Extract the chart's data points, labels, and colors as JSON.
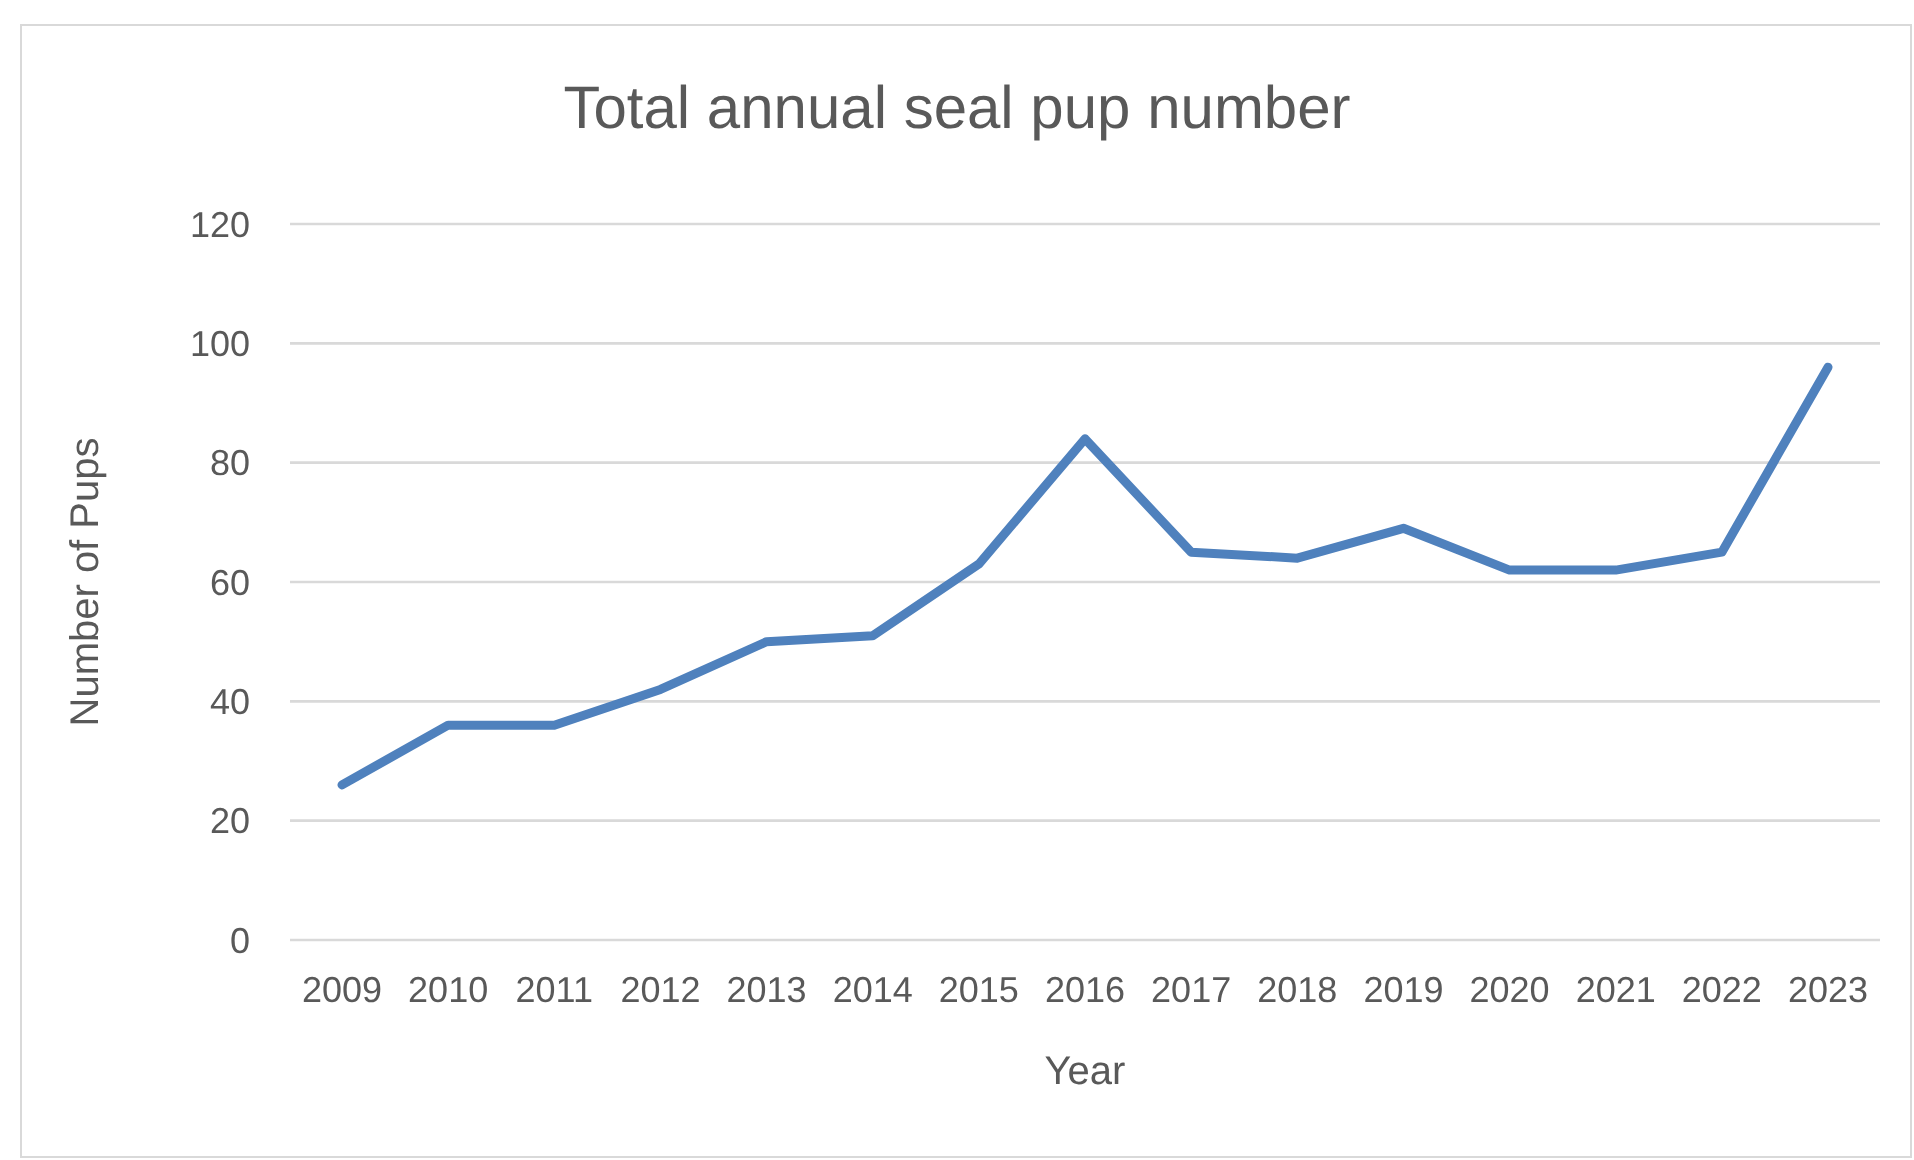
{
  "chart_data": {
    "type": "line",
    "title": "Total annual seal pup number",
    "xlabel": "Year",
    "ylabel": "Number of Pups",
    "categories": [
      "2009",
      "2010",
      "2011",
      "2012",
      "2013",
      "2014",
      "2015",
      "2016",
      "2017",
      "2018",
      "2019",
      "2020",
      "2021",
      "2022",
      "2023"
    ],
    "series": [
      {
        "color": "#4f81bd",
        "values": [
          26,
          36,
          36,
          42,
          50,
          51,
          63,
          84,
          65,
          64,
          69,
          62,
          62,
          65,
          96
        ]
      }
    ],
    "ylim": [
      0,
      120
    ],
    "yticks": [
      0,
      20,
      40,
      60,
      80,
      100,
      120
    ],
    "grid": "y",
    "marker": "none",
    "line_style": "solid"
  }
}
